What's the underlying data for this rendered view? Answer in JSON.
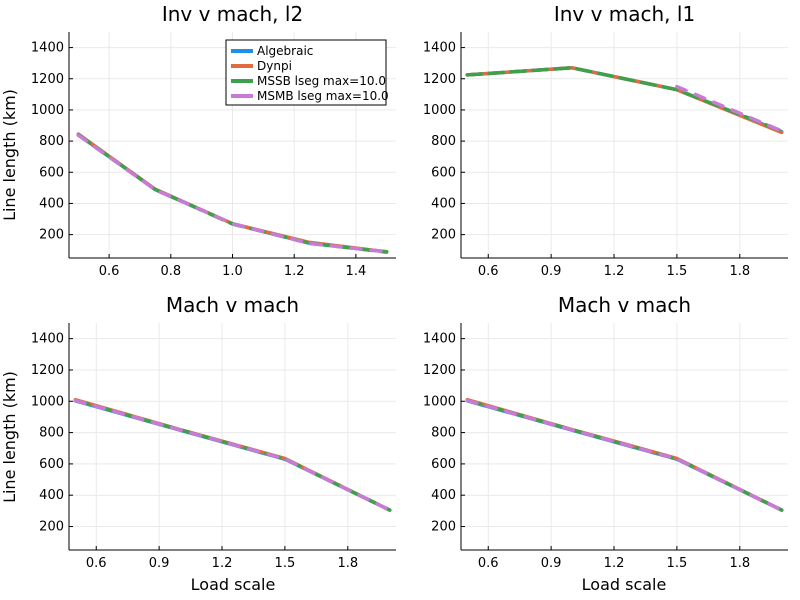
{
  "figure": {
    "ylabel": "Line length (km)",
    "xlabel": "Load scale"
  },
  "legend": {
    "placement": "top-right of first subplot",
    "entries": [
      "Algebraic",
      "Dynpi",
      "MSSB lseg max=10.0",
      "MSMB lseg max=10.0"
    ]
  },
  "series_colors": [
    "#1f8ee6",
    "#e26c40",
    "#3ea04a",
    "#c87ad6"
  ],
  "chart_data": [
    {
      "type": "line",
      "title": "Inv v mach, l2",
      "xlabel": "",
      "ylabel": "Line length (km)",
      "xlim": [
        0.47,
        1.53
      ],
      "ylim": [
        50,
        1500
      ],
      "xticks": [
        0.6,
        0.8,
        1.0,
        1.2,
        1.4
      ],
      "xtick_labels": [
        "0.6",
        "0.8",
        "1.0",
        "1.2",
        "1.4"
      ],
      "yticks": [
        200,
        400,
        600,
        800,
        1000,
        1200,
        1400
      ],
      "grid": true,
      "series": [
        {
          "name": "Algebraic",
          "x": [
            0.5,
            0.75,
            1.0,
            1.25,
            1.5
          ],
          "y": [
            840,
            490,
            270,
            145,
            90
          ]
        },
        {
          "name": "Dynpi",
          "x": [
            0.5,
            0.75,
            1.0,
            1.25,
            1.5
          ],
          "y": [
            845,
            490,
            270,
            150,
            90
          ]
        },
        {
          "name": "MSSB lseg max=10.0",
          "x": [
            0.5,
            0.75,
            1.0,
            1.25,
            1.5
          ],
          "y": [
            842,
            488,
            268,
            145,
            88
          ]
        },
        {
          "name": "MSMB lseg max=10.0",
          "x": [
            0.5,
            0.75,
            1.0,
            1.25,
            1.5
          ],
          "y": [
            838,
            487,
            270,
            143,
            90
          ]
        }
      ]
    },
    {
      "type": "line",
      "title": "Inv v mach, l1",
      "xlabel": "",
      "ylabel": "",
      "xlim": [
        0.47,
        2.03
      ],
      "ylim": [
        50,
        1500
      ],
      "xticks": [
        0.6,
        0.9,
        1.2,
        1.5,
        1.8
      ],
      "xtick_labels": [
        "0.6",
        "0.9",
        "1.2",
        "1.5",
        "1.8"
      ],
      "yticks": [
        200,
        400,
        600,
        800,
        1000,
        1200,
        1400
      ],
      "grid": true,
      "series": [
        {
          "name": "Algebraic",
          "x": [
            0.5,
            1.0,
            1.5,
            2.0
          ],
          "y": [
            1225,
            1270,
            1130,
            860
          ]
        },
        {
          "name": "Dynpi",
          "x": [
            0.5,
            1.0,
            1.5,
            2.0
          ],
          "y": [
            1225,
            1270,
            1130,
            855
          ]
        },
        {
          "name": "MSSB lseg max=10.0",
          "x": [
            0.5,
            1.0,
            1.5,
            2.0
          ],
          "y": [
            1225,
            1270,
            1130,
            865
          ]
        },
        {
          "name": "MSMB lseg max=10.0",
          "x": [
            1.5,
            2.0
          ],
          "y": [
            1150,
            865
          ]
        }
      ]
    },
    {
      "type": "line",
      "title": "Mach v mach",
      "xlabel": "Load scale",
      "ylabel": "Line length (km)",
      "xlim": [
        0.47,
        2.03
      ],
      "ylim": [
        50,
        1500
      ],
      "xticks": [
        0.6,
        0.9,
        1.2,
        1.5,
        1.8
      ],
      "xtick_labels": [
        "0.6",
        "0.9",
        "1.2",
        "1.5",
        "1.8"
      ],
      "yticks": [
        200,
        400,
        600,
        800,
        1000,
        1200,
        1400
      ],
      "grid": true,
      "series": [
        {
          "name": "Algebraic",
          "x": [
            0.5,
            1.0,
            1.5,
            2.0
          ],
          "y": [
            1003,
            815,
            630,
            305
          ]
        },
        {
          "name": "Dynpi",
          "x": [
            0.5,
            1.0,
            1.5,
            2.0
          ],
          "y": [
            1010,
            820,
            635,
            305
          ]
        },
        {
          "name": "MSSB lseg max=10.0",
          "x": [
            0.5,
            1.0,
            1.5,
            2.0
          ],
          "y": [
            1005,
            818,
            632,
            305
          ]
        },
        {
          "name": "MSMB lseg max=10.0",
          "x": [
            0.5,
            1.0,
            1.5,
            2.0
          ],
          "y": [
            1005,
            817,
            632,
            305
          ]
        }
      ]
    },
    {
      "type": "line",
      "title": "Mach v mach",
      "xlabel": "Load scale",
      "ylabel": "",
      "xlim": [
        0.47,
        2.03
      ],
      "ylim": [
        50,
        1500
      ],
      "xticks": [
        0.6,
        0.9,
        1.2,
        1.5,
        1.8
      ],
      "xtick_labels": [
        "0.6",
        "0.9",
        "1.2",
        "1.5",
        "1.8"
      ],
      "yticks": [
        200,
        400,
        600,
        800,
        1000,
        1200,
        1400
      ],
      "grid": true,
      "series": [
        {
          "name": "Algebraic",
          "x": [
            0.5,
            1.0,
            1.5,
            2.0
          ],
          "y": [
            1003,
            815,
            630,
            305
          ]
        },
        {
          "name": "Dynpi",
          "x": [
            0.5,
            1.0,
            1.5,
            2.0
          ],
          "y": [
            1010,
            820,
            635,
            305
          ]
        },
        {
          "name": "MSSB lseg max=10.0",
          "x": [
            0.5,
            1.0,
            1.5,
            2.0
          ],
          "y": [
            1005,
            818,
            632,
            305
          ]
        },
        {
          "name": "MSMB lseg max=10.0",
          "x": [
            0.5,
            1.0,
            1.5,
            2.0
          ],
          "y": [
            1005,
            817,
            632,
            305
          ]
        }
      ]
    }
  ]
}
